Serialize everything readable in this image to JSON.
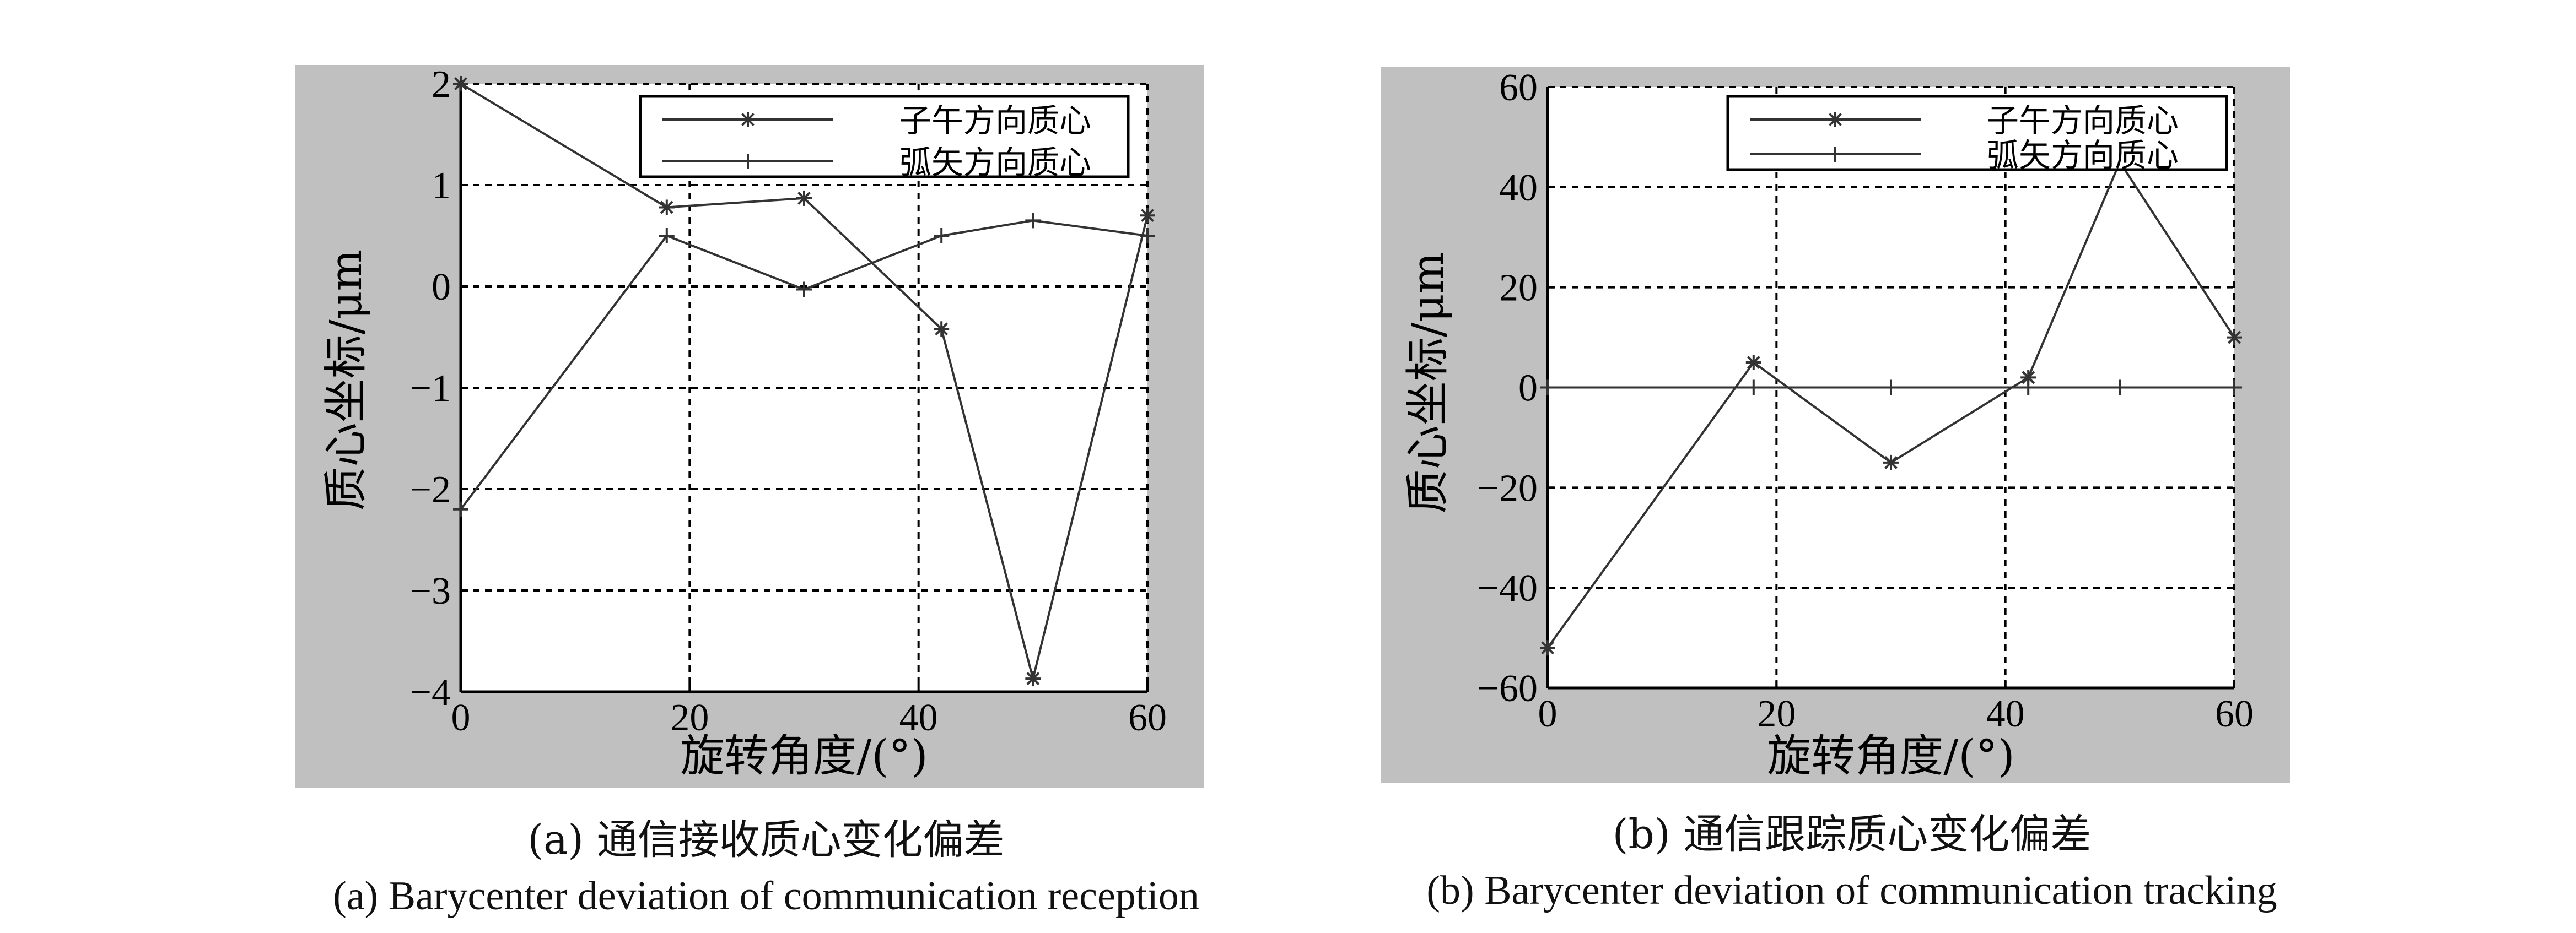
{
  "colors": {
    "frame_bg": "#c0c0c0",
    "plot_bg": "#ffffff",
    "line": "#333333",
    "grid": "#000000"
  },
  "captions": {
    "a_zh": "(a) 通信接收质心变化偏差",
    "a_en": "(a) Barycenter deviation of communication reception",
    "b_zh": "(b) 通信跟踪质心变化偏差",
    "b_en": "(b) Barycenter deviation of communication tracking"
  },
  "chart_data": [
    {
      "type": "line",
      "xlabel": "旋转角度/(°)",
      "ylabel": "质心坐标/μm",
      "xlim": [
        0,
        60
      ],
      "ylim": [
        -4,
        2
      ],
      "xticks": [
        0,
        20,
        40,
        60
      ],
      "yticks": [
        -4,
        -3,
        -2,
        -1,
        0,
        1,
        2
      ],
      "xtick_labels": [
        "0",
        "20",
        "40",
        "60"
      ],
      "ytick_labels": [
        "−4",
        "−3",
        "−2",
        "−1",
        "0",
        "1",
        "2"
      ],
      "grid": true,
      "legend_position": "top-right",
      "x": [
        0,
        18,
        30,
        42,
        50,
        60
      ],
      "series": [
        {
          "name": "子午方向质心",
          "marker": "*",
          "values": [
            2.0,
            0.78,
            0.87,
            -0.42,
            -3.87,
            0.7
          ]
        },
        {
          "name": "弧矢方向质心",
          "marker": "+",
          "values": [
            -2.2,
            0.5,
            -0.03,
            0.5,
            0.65,
            0.5
          ]
        }
      ]
    },
    {
      "type": "line",
      "xlabel": "旋转角度/(°)",
      "ylabel": "质心坐标/μm",
      "xlim": [
        0,
        60
      ],
      "ylim": [
        -60,
        60
      ],
      "xticks": [
        0,
        20,
        40,
        60
      ],
      "yticks": [
        -60,
        -40,
        -20,
        0,
        20,
        40,
        60
      ],
      "xtick_labels": [
        "0",
        "20",
        "40",
        "60"
      ],
      "ytick_labels": [
        "−60",
        "−40",
        "−20",
        "0",
        "20",
        "40",
        "60"
      ],
      "grid": true,
      "legend_position": "top-right",
      "x": [
        0,
        18,
        30,
        42,
        50,
        60
      ],
      "series": [
        {
          "name": "子午方向质心",
          "marker": "*",
          "values": [
            -52,
            5,
            -15,
            2,
            45,
            10
          ]
        },
        {
          "name": "弧矢方向质心",
          "marker": "+",
          "values": [
            0,
            0,
            0,
            0,
            0,
            0
          ]
        }
      ]
    }
  ]
}
